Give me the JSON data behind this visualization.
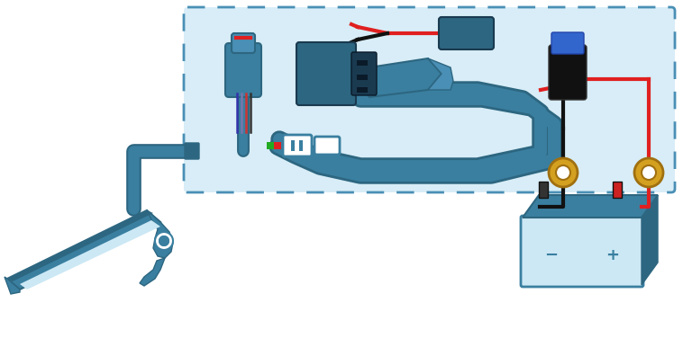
{
  "bg_color": "#ffffff",
  "box_bg": "#d8edf7",
  "box_border": "#4a8fb5",
  "teal": "#3a7fa0",
  "dark_teal": "#2d6680",
  "mid_teal": "#4a8fb5",
  "light_blue": "#cce8f5",
  "red_wire": "#e02020",
  "black_wire": "#111111",
  "gold_ring": "#d4a020",
  "gold_dark": "#a07010",
  "blue_fuse": "#3366cc",
  "fig_w": 7.58,
  "fig_h": 3.86,
  "dpi": 100
}
